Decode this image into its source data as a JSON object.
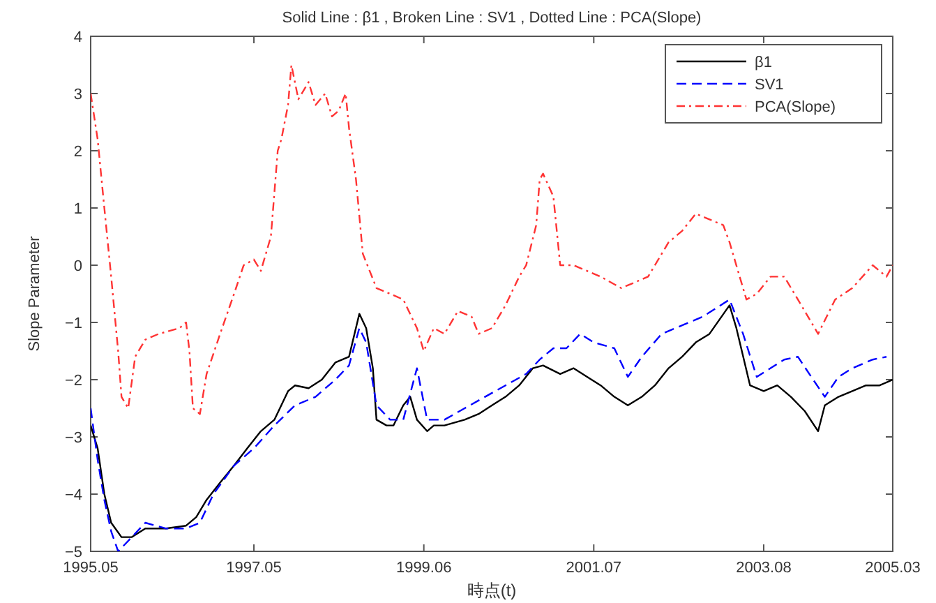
{
  "chart_data": {
    "type": "line",
    "title": "Solid Line : β1 , Broken Line : SV1 , Dotted Line : PCA(Slope)",
    "xlabel": "時点(t)",
    "ylabel": "Slope Parameter",
    "xlim": [
      "1995-05",
      "2005-03"
    ],
    "xticks": [
      {
        "value": "1995-05",
        "label": "1995.05"
      },
      {
        "value": "1997-05",
        "label": "1997.05"
      },
      {
        "value": "1999-06",
        "label": "1999.06"
      },
      {
        "value": "2001-07",
        "label": "2001.07"
      },
      {
        "value": "2003-08",
        "label": "2003.08"
      },
      {
        "value": "2005-03",
        "label": "2005.03"
      }
    ],
    "ylim": [
      -5,
      4
    ],
    "yticks": [
      -5,
      -4,
      -3,
      -2,
      -1,
      0,
      1,
      2,
      3,
      4
    ],
    "grid": false,
    "legend": "top right",
    "series": [
      {
        "name": "β1",
        "color": "#000000",
        "line_style": "solid",
        "x": [
          "1995-05-01",
          "1995-06-01",
          "1995-07-01",
          "1995-08-01",
          "1995-09-16",
          "1995-11-01",
          "1996-01-01",
          "1996-04-01",
          "1996-07-01",
          "1996-08-16",
          "1996-10-01",
          "1996-12-01",
          "1997-02-01",
          "1997-04-01",
          "1997-06-01",
          "1997-08-01",
          "1997-10-01",
          "1997-11-01",
          "1998-01-01",
          "1998-03-01",
          "1998-05-01",
          "1998-07-01",
          "1998-08-16",
          "1998-09-16",
          "1998-10-16",
          "1998-11-01",
          "1998-12-16",
          "1999-01-16",
          "1999-03-01",
          "1999-04-01",
          "1999-05-01",
          "1999-06-16",
          "1999-07-16",
          "1999-09-01",
          "1999-12-01",
          "2000-02-01",
          "2000-04-01",
          "2000-06-01",
          "2000-08-01",
          "2000-10-01",
          "2000-11-16",
          "2001-02-01",
          "2001-04-01",
          "2001-06-01",
          "2001-08-01",
          "2001-10-01",
          "2001-12-01",
          "2002-02-01",
          "2002-04-01",
          "2002-06-01",
          "2002-08-01",
          "2002-10-01",
          "2002-12-01",
          "2003-03-01",
          "2003-04-01",
          "2003-06-01",
          "2003-08-01",
          "2003-10-01",
          "2003-12-01",
          "2004-02-01",
          "2004-04-01",
          "2004-05-01",
          "2004-07-01",
          "2004-09-01",
          "2004-11-01",
          "2005-01-01",
          "2005-03-01"
        ],
        "values": [
          -2.8,
          -3.2,
          -4.0,
          -4.5,
          -4.75,
          -4.75,
          -4.6,
          -4.6,
          -4.55,
          -4.4,
          -4.1,
          -3.8,
          -3.5,
          -3.2,
          -2.9,
          -2.7,
          -2.2,
          -2.1,
          -2.15,
          -2.0,
          -1.7,
          -1.6,
          -0.85,
          -1.1,
          -1.8,
          -2.7,
          -2.8,
          -2.8,
          -2.45,
          -2.3,
          -2.7,
          -2.9,
          -2.8,
          -2.8,
          -2.7,
          -2.6,
          -2.45,
          -2.3,
          -2.1,
          -1.8,
          -1.75,
          -1.9,
          -1.8,
          -1.95,
          -2.1,
          -2.3,
          -2.45,
          -2.3,
          -2.1,
          -1.8,
          -1.6,
          -1.35,
          -1.2,
          -0.7,
          -1.1,
          -2.1,
          -2.2,
          -2.1,
          -2.3,
          -2.55,
          -2.9,
          -2.45,
          -2.3,
          -2.2,
          -2.1,
          -2.1,
          -2.0
        ]
      },
      {
        "name": "SV1",
        "color": "#0000ff",
        "line_style": "dashed",
        "x": [
          "1995-05-01",
          "1995-06-01",
          "1995-07-01",
          "1995-08-01",
          "1995-09-01",
          "1995-11-01",
          "1996-01-01",
          "1996-04-01",
          "1996-07-01",
          "1996-09-01",
          "1996-11-01",
          "1997-02-01",
          "1997-05-01",
          "1997-08-01",
          "1997-11-01",
          "1998-02-01",
          "1998-05-01",
          "1998-07-01",
          "1998-08-16",
          "1998-09-16",
          "1998-11-01",
          "1999-01-01",
          "1999-03-01",
          "1999-05-01",
          "1999-06-16",
          "1999-09-01",
          "1999-12-01",
          "2000-03-01",
          "2000-06-01",
          "2000-09-01",
          "2000-11-01",
          "2001-01-01",
          "2001-03-01",
          "2001-05-01",
          "2001-07-01",
          "2001-10-01",
          "2001-12-01",
          "2002-02-01",
          "2002-05-01",
          "2002-08-01",
          "2002-11-01",
          "2003-03-01",
          "2003-05-01",
          "2003-07-01",
          "2003-09-01",
          "2003-11-01",
          "2004-01-01",
          "2004-03-01",
          "2004-05-01",
          "2004-07-01",
          "2004-09-01",
          "2004-12-01",
          "2005-02-01"
        ],
        "values": [
          -2.5,
          -3.4,
          -4.1,
          -4.65,
          -5.0,
          -4.75,
          -4.5,
          -4.6,
          -4.6,
          -4.5,
          -4.0,
          -3.5,
          -3.2,
          -2.8,
          -2.45,
          -2.3,
          -2.0,
          -1.75,
          -1.1,
          -1.35,
          -2.45,
          -2.7,
          -2.7,
          -1.8,
          -2.7,
          -2.7,
          -2.5,
          -2.3,
          -2.1,
          -1.9,
          -1.65,
          -1.45,
          -1.45,
          -1.2,
          -1.35,
          -1.45,
          -1.95,
          -1.6,
          -1.2,
          -1.05,
          -0.9,
          -0.6,
          -1.2,
          -1.95,
          -1.8,
          -1.65,
          -1.6,
          -1.95,
          -2.3,
          -1.95,
          -1.8,
          -1.65,
          -1.6
        ]
      },
      {
        "name": "PCA(Slope)",
        "color": "#ff3333",
        "line_style": "dotted",
        "x": [
          "1995-05-01",
          "1995-06-01",
          "1995-07-01",
          "1995-08-01",
          "1995-09-01",
          "1995-09-16",
          "1995-10-16",
          "1995-11-16",
          "1996-01-01",
          "1996-03-01",
          "1996-06-01",
          "1996-07-01",
          "1996-07-16",
          "1996-08-01",
          "1996-09-01",
          "1996-10-01",
          "1996-12-01",
          "1997-02-01",
          "1997-03-16",
          "1997-05-01",
          "1997-06-01",
          "1997-07-16",
          "1997-08-16",
          "1997-09-01",
          "1997-10-01",
          "1997-10-16",
          "1997-11-16",
          "1998-01-01",
          "1998-02-01",
          "1998-03-16",
          "1998-04-16",
          "1998-05-16",
          "1998-06-16",
          "1998-07-01",
          "1998-08-01",
          "1998-09-01",
          "1998-11-01",
          "1999-01-01",
          "1999-03-01",
          "1999-05-01",
          "1999-06-01",
          "1999-07-16",
          "1999-09-01",
          "1999-11-01",
          "2000-01-01",
          "2000-02-01",
          "2000-04-01",
          "2000-06-01",
          "2000-08-01",
          "2000-09-01",
          "2000-10-16",
          "2000-11-01",
          "2000-11-16",
          "2001-01-01",
          "2001-02-01",
          "2001-04-01",
          "2001-06-01",
          "2001-08-01",
          "2001-11-01",
          "2002-01-01",
          "2002-03-01",
          "2002-06-01",
          "2002-08-01",
          "2002-10-01",
          "2002-12-01",
          "2003-02-01",
          "2003-03-01",
          "2003-05-16",
          "2003-07-01",
          "2003-09-01",
          "2003-11-01",
          "2004-01-01",
          "2004-04-01",
          "2004-06-16",
          "2004-09-01",
          "2004-12-01",
          "2005-02-01",
          "2005-03-01"
        ],
        "values": [
          3.0,
          2.2,
          1.0,
          -0.2,
          -1.5,
          -2.3,
          -2.5,
          -1.6,
          -1.3,
          -1.2,
          -1.1,
          -1.0,
          -1.5,
          -2.5,
          -2.6,
          -1.9,
          -1.2,
          -0.5,
          0.0,
          0.1,
          -0.1,
          0.5,
          2.0,
          2.2,
          2.8,
          3.5,
          2.9,
          3.2,
          2.8,
          3.0,
          2.6,
          2.7,
          3.0,
          2.4,
          1.5,
          0.2,
          -0.4,
          -0.5,
          -0.6,
          -1.1,
          -1.5,
          -1.1,
          -1.2,
          -0.8,
          -0.9,
          -1.2,
          -1.1,
          -0.7,
          -0.2,
          0.0,
          0.7,
          1.5,
          1.6,
          1.2,
          0.0,
          0.0,
          -0.1,
          -0.2,
          -0.4,
          -0.3,
          -0.2,
          0.4,
          0.6,
          0.9,
          0.8,
          0.7,
          0.4,
          -0.6,
          -0.5,
          -0.2,
          -0.2,
          -0.6,
          -1.2,
          -0.6,
          -0.4,
          0.0,
          -0.2,
          0.0
        ]
      }
    ]
  }
}
